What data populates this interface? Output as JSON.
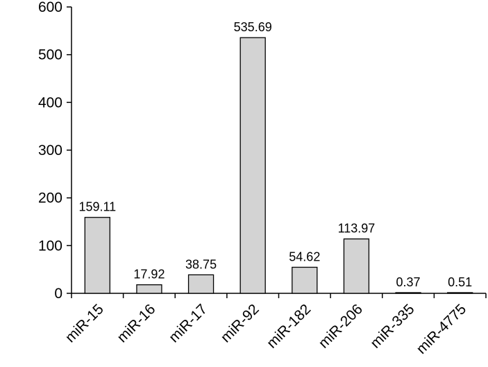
{
  "chart_data": {
    "type": "bar",
    "categories": [
      "miR-15",
      "miR-16",
      "miR-17",
      "miR-92",
      "miR-182",
      "miR-206",
      "miR-335",
      "miR-4775"
    ],
    "values": [
      159.11,
      17.92,
      38.75,
      535.69,
      54.62,
      113.97,
      0.37,
      0.51
    ],
    "data_labels": [
      "159.11",
      "17.92",
      "38.75",
      "535.69",
      "54.62",
      "113.97",
      "0.37",
      "0.51"
    ],
    "yticks": [
      "0",
      "100",
      "200",
      "300",
      "400",
      "500",
      "600"
    ],
    "ylim": [
      0,
      600
    ],
    "title": "",
    "xlabel": "",
    "ylabel": "",
    "grid": false,
    "bar_color": "#d3d3d3",
    "edge_color": "#000000"
  }
}
